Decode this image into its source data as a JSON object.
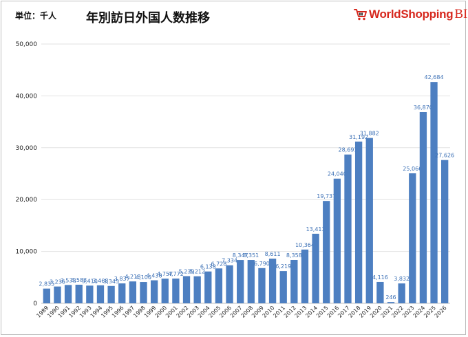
{
  "header": {
    "unit_label": "単位：千人",
    "title": "年別訪日外国人数推移",
    "brand_word": "WorldShopping",
    "brand_suffix": "BIZ",
    "brand_color": "#d7281e"
  },
  "chart_data": {
    "type": "bar",
    "title": "年別訪日外国人数推移",
    "xlabel": "",
    "ylabel": "",
    "unit": "単位：千人",
    "ylim": [
      0,
      50000
    ],
    "yticks": [
      0,
      10000,
      20000,
      30000,
      40000,
      50000
    ],
    "ytick_labels": [
      "0",
      "10,000",
      "20,000",
      "30,000",
      "40,000",
      "50,000"
    ],
    "grid": true,
    "legend": "none",
    "bar_color": "#4d7fc1",
    "label_color": "#3a6fb5",
    "categories": [
      "1989",
      "1990",
      "1991",
      "1992",
      "1993",
      "1994",
      "1995",
      "1996",
      "1997",
      "1998",
      "1999",
      "2000",
      "2001",
      "2002",
      "2003",
      "2004",
      "2005",
      "2006",
      "2007",
      "2008",
      "2009",
      "2010",
      "2011",
      "2012",
      "2013",
      "2014",
      "2015",
      "2016",
      "2017",
      "2018",
      "2019",
      "2020",
      "2021",
      "2022",
      "2023",
      "2024",
      "2025",
      "2026"
    ],
    "values": [
      2835,
      3236,
      3533,
      3583,
      3410,
      3468,
      3345,
      3837,
      4218,
      4106,
      4438,
      4757,
      4772,
      5239,
      5212,
      6138,
      6728,
      7334,
      8347,
      8351,
      6790,
      8611,
      6219,
      8358,
      10364,
      13413,
      19737,
      24040,
      28691,
      31192,
      31882,
      4116,
      246,
      3832,
      25066,
      36870,
      42684,
      27626
    ],
    "value_labels": [
      "2,835",
      "3,236",
      "3,533",
      "3,583",
      "3,410",
      "3,468",
      "3,345",
      "3,837",
      "4,218",
      "4,106",
      "4,438",
      "4,757",
      "4,772",
      "5,239",
      "5,212",
      "6,138",
      "6,728",
      "7,334",
      "8,347",
      "8,351",
      "6,790",
      "8,611",
      "6,219",
      "8,358",
      "10,364",
      "13,413",
      "19,737",
      "24,040",
      "28,691",
      "31,192",
      "31,882",
      "4,116",
      "246",
      "3,832",
      "25,066",
      "36,870",
      "42,684",
      "27,626"
    ]
  }
}
